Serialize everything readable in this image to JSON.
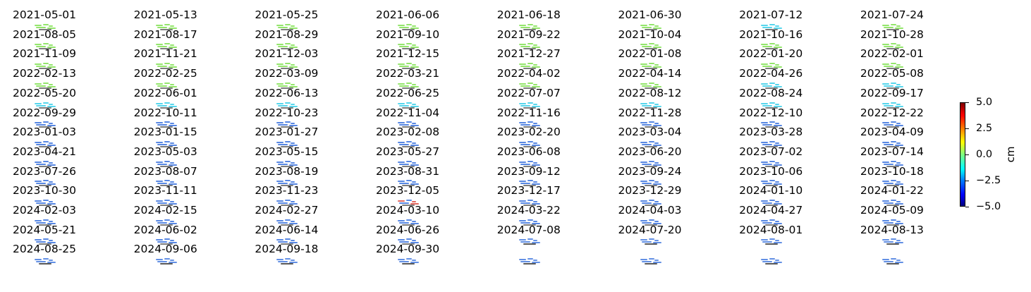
{
  "chart_data": {
    "type": "heatmap",
    "layout": "small-multiples",
    "panel_columns": 8,
    "panels": [
      {
        "date": "2021-05-01",
        "tone": "none"
      },
      {
        "date": "2021-05-13",
        "tone": "none"
      },
      {
        "date": "2021-05-25",
        "tone": "none"
      },
      {
        "date": "2021-06-06",
        "tone": "none"
      },
      {
        "date": "2021-06-18",
        "tone": "none"
      },
      {
        "date": "2021-06-30",
        "tone": "none"
      },
      {
        "date": "2021-07-12",
        "tone": "none"
      },
      {
        "date": "2021-07-24",
        "tone": "none"
      },
      {
        "date": "2021-08-05",
        "tone": "green"
      },
      {
        "date": "2021-08-17",
        "tone": "green"
      },
      {
        "date": "2021-08-29",
        "tone": "green"
      },
      {
        "date": "2021-09-10",
        "tone": "green"
      },
      {
        "date": "2021-09-22",
        "tone": "green"
      },
      {
        "date": "2021-10-04",
        "tone": "green"
      },
      {
        "date": "2021-10-16",
        "tone": "cyan"
      },
      {
        "date": "2021-10-28",
        "tone": "green"
      },
      {
        "date": "2021-11-09",
        "tone": "green"
      },
      {
        "date": "2021-11-21",
        "tone": "green"
      },
      {
        "date": "2021-12-03",
        "tone": "green"
      },
      {
        "date": "2021-12-15",
        "tone": "green"
      },
      {
        "date": "2021-12-27",
        "tone": "green"
      },
      {
        "date": "2022-01-08",
        "tone": "green"
      },
      {
        "date": "2022-01-20",
        "tone": "green"
      },
      {
        "date": "2022-02-01",
        "tone": "green"
      },
      {
        "date": "2022-02-13",
        "tone": "green"
      },
      {
        "date": "2022-02-25",
        "tone": "green"
      },
      {
        "date": "2022-03-09",
        "tone": "green"
      },
      {
        "date": "2022-03-21",
        "tone": "green"
      },
      {
        "date": "2022-04-02",
        "tone": "green"
      },
      {
        "date": "2022-04-14",
        "tone": "green"
      },
      {
        "date": "2022-04-26",
        "tone": "green"
      },
      {
        "date": "2022-05-08",
        "tone": "green"
      },
      {
        "date": "2022-05-20",
        "tone": "green"
      },
      {
        "date": "2022-06-01",
        "tone": "green"
      },
      {
        "date": "2022-06-13",
        "tone": "green"
      },
      {
        "date": "2022-06-25",
        "tone": "green"
      },
      {
        "date": "2022-07-07",
        "tone": "green"
      },
      {
        "date": "2022-08-12",
        "tone": "green"
      },
      {
        "date": "2022-08-24",
        "tone": "cyan"
      },
      {
        "date": "2022-09-17",
        "tone": "cyan"
      },
      {
        "date": "2022-09-29",
        "tone": "cyan"
      },
      {
        "date": "2022-10-11",
        "tone": "cyan"
      },
      {
        "date": "2022-10-23",
        "tone": "cyan"
      },
      {
        "date": "2022-11-04",
        "tone": "cyan"
      },
      {
        "date": "2022-11-16",
        "tone": "cyan"
      },
      {
        "date": "2022-11-28",
        "tone": "cyan"
      },
      {
        "date": "2022-12-10",
        "tone": "cyan"
      },
      {
        "date": "2022-12-22",
        "tone": "cyan"
      },
      {
        "date": "2023-01-03",
        "tone": "blue"
      },
      {
        "date": "2023-01-15",
        "tone": "blue"
      },
      {
        "date": "2023-01-27",
        "tone": "blue"
      },
      {
        "date": "2023-02-08",
        "tone": "blue"
      },
      {
        "date": "2023-02-20",
        "tone": "blue"
      },
      {
        "date": "2023-03-04",
        "tone": "blue"
      },
      {
        "date": "2023-03-28",
        "tone": "blue"
      },
      {
        "date": "2023-04-09",
        "tone": "blue"
      },
      {
        "date": "2023-04-21",
        "tone": "blue"
      },
      {
        "date": "2023-05-03",
        "tone": "blue"
      },
      {
        "date": "2023-05-15",
        "tone": "blue"
      },
      {
        "date": "2023-05-27",
        "tone": "blue"
      },
      {
        "date": "2023-06-08",
        "tone": "blue"
      },
      {
        "date": "2023-06-20",
        "tone": "blue"
      },
      {
        "date": "2023-07-02",
        "tone": "blue"
      },
      {
        "date": "2023-07-14",
        "tone": "blue"
      },
      {
        "date": "2023-07-26",
        "tone": "blue"
      },
      {
        "date": "2023-08-07",
        "tone": "blue"
      },
      {
        "date": "2023-08-19",
        "tone": "blue"
      },
      {
        "date": "2023-08-31",
        "tone": "blue"
      },
      {
        "date": "2023-09-12",
        "tone": "blue"
      },
      {
        "date": "2023-09-24",
        "tone": "blue"
      },
      {
        "date": "2023-10-06",
        "tone": "blue"
      },
      {
        "date": "2023-10-18",
        "tone": "blue"
      },
      {
        "date": "2023-10-30",
        "tone": "blue"
      },
      {
        "date": "2023-11-11",
        "tone": "blue"
      },
      {
        "date": "2023-11-23",
        "tone": "blue"
      },
      {
        "date": "2023-12-05",
        "tone": "blue"
      },
      {
        "date": "2023-12-17",
        "tone": "blue"
      },
      {
        "date": "2023-12-29",
        "tone": "blue"
      },
      {
        "date": "2024-01-10",
        "tone": "blue"
      },
      {
        "date": "2024-01-22",
        "tone": "blue"
      },
      {
        "date": "2024-02-03",
        "tone": "blue"
      },
      {
        "date": "2024-02-15",
        "tone": "blue"
      },
      {
        "date": "2024-02-27",
        "tone": "blue"
      },
      {
        "date": "2024-03-10",
        "tone": "mixed"
      },
      {
        "date": "2024-03-22",
        "tone": "blue"
      },
      {
        "date": "2024-04-03",
        "tone": "blue"
      },
      {
        "date": "2024-04-27",
        "tone": "blue"
      },
      {
        "date": "2024-05-09",
        "tone": "blue"
      },
      {
        "date": "2024-05-21",
        "tone": "blue"
      },
      {
        "date": "2024-06-02",
        "tone": "blue"
      },
      {
        "date": "2024-06-14",
        "tone": "blue"
      },
      {
        "date": "2024-06-26",
        "tone": "blue"
      },
      {
        "date": "2024-07-08",
        "tone": "blue"
      },
      {
        "date": "2024-07-20",
        "tone": "blue"
      },
      {
        "date": "2024-08-01",
        "tone": "blue"
      },
      {
        "date": "2024-08-13",
        "tone": "blue"
      },
      {
        "date": "2024-08-25",
        "tone": "blue"
      },
      {
        "date": "2024-09-06",
        "tone": "blue"
      },
      {
        "date": "2024-09-18",
        "tone": "blue"
      },
      {
        "date": "2024-09-30",
        "tone": "blue"
      }
    ],
    "colorbar": {
      "colormap": "jet",
      "range": [
        -5.0,
        5.0
      ],
      "ticks": [
        5.0,
        2.5,
        0.0,
        -2.5,
        -5.0
      ],
      "tick_labels": [
        "5.0",
        "2.5",
        "0.0",
        "−2.5",
        "−5.0"
      ],
      "label": "cm"
    },
    "colors": {
      "none": "#ffffff",
      "green": "#6fdc3a",
      "cyan": "#1ec8e6",
      "blue": "#1f5fd8",
      "mixed": "#d8342a",
      "dark": "#111111"
    }
  }
}
